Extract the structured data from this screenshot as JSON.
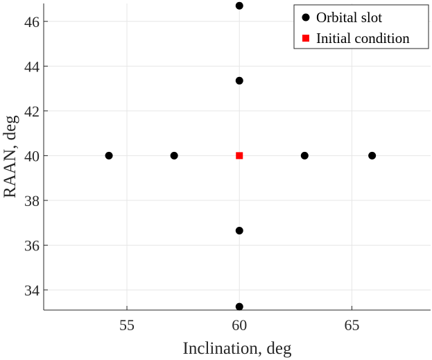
{
  "chart_data": {
    "type": "scatter",
    "title": "",
    "xlabel": "Inclination, deg",
    "ylabel": "RAAN, deg",
    "xlim": [
      51.3,
      68.5
    ],
    "ylim": [
      33.1,
      46.8
    ],
    "xticks": [
      55,
      60,
      65
    ],
    "yticks": [
      34,
      36,
      38,
      40,
      42,
      44,
      46
    ],
    "grid": true,
    "legend_position": "top-right",
    "series": [
      {
        "name": "Orbital slot",
        "marker": "circle",
        "color": "#000000",
        "points": [
          {
            "x": 54.2,
            "y": 40.0
          },
          {
            "x": 57.1,
            "y": 40.0
          },
          {
            "x": 62.9,
            "y": 40.0
          },
          {
            "x": 65.9,
            "y": 40.0
          },
          {
            "x": 60.0,
            "y": 46.7
          },
          {
            "x": 60.0,
            "y": 43.35
          },
          {
            "x": 60.0,
            "y": 36.65
          },
          {
            "x": 60.0,
            "y": 33.25
          }
        ]
      },
      {
        "name": "Initial condition",
        "marker": "square",
        "color": "#ff0000",
        "points": [
          {
            "x": 60.0,
            "y": 40.0
          }
        ]
      }
    ]
  }
}
